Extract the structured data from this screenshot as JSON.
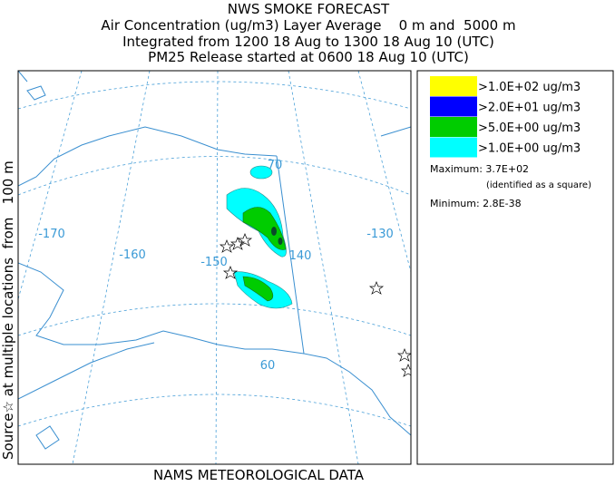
{
  "header": {
    "title": "NWS SMOKE FORECAST",
    "lines": [
      "Air Concentration (ug/m3) Layer Average    0 m and  5000 m",
      "Integrated from 1200 18 Aug to 1300 18 Aug 10 (UTC)",
      "PM25 Release started at 0600 18 Aug 10 (UTC)"
    ]
  },
  "side_label": "Source☆ at multiple locations  from   100 m",
  "map": {
    "labels": [
      "-170",
      "-160",
      "-150",
      "140",
      "-130",
      "70",
      "60"
    ]
  },
  "legend": {
    "entries": [
      {
        "label": ">1.0E+02 ug/m3",
        "color": "#ffff00"
      },
      {
        "label": ">2.0E+01 ug/m3",
        "color": "#0000ff"
      },
      {
        "label": ">5.0E+00 ug/m3",
        "color": "#00cc00"
      },
      {
        "label": ">1.0E+00 ug/m3",
        "color": "#00ffff"
      }
    ],
    "maximum": "Maximum: 3.7E+02",
    "maximum_note": "(identified as a square)",
    "minimum": "Minimum: 2.8E-38"
  },
  "footer": "NAMS METEOROLOGICAL DATA"
}
